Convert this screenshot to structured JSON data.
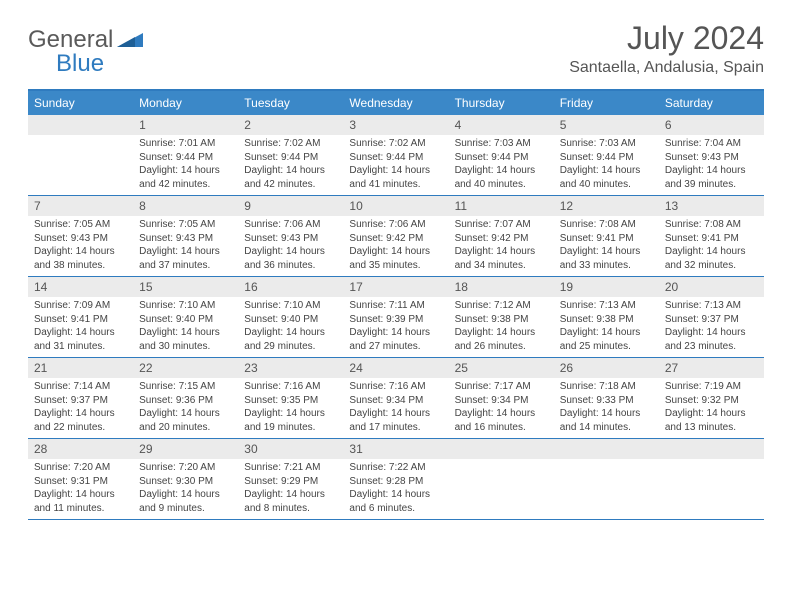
{
  "brand": {
    "general": "General",
    "blue": "Blue"
  },
  "title": "July 2024",
  "location": "Santaella, Andalusia, Spain",
  "colors": {
    "header_bg": "#3b88c8",
    "border": "#2f7bbf",
    "daynum_bg": "#ebebeb",
    "text": "#555555"
  },
  "weekdays": [
    "Sunday",
    "Monday",
    "Tuesday",
    "Wednesday",
    "Thursday",
    "Friday",
    "Saturday"
  ],
  "weeks": [
    [
      null,
      {
        "n": "1",
        "sr": "7:01 AM",
        "ss": "9:44 PM",
        "dl": "14 hours and 42 minutes."
      },
      {
        "n": "2",
        "sr": "7:02 AM",
        "ss": "9:44 PM",
        "dl": "14 hours and 42 minutes."
      },
      {
        "n": "3",
        "sr": "7:02 AM",
        "ss": "9:44 PM",
        "dl": "14 hours and 41 minutes."
      },
      {
        "n": "4",
        "sr": "7:03 AM",
        "ss": "9:44 PM",
        "dl": "14 hours and 40 minutes."
      },
      {
        "n": "5",
        "sr": "7:03 AM",
        "ss": "9:44 PM",
        "dl": "14 hours and 40 minutes."
      },
      {
        "n": "6",
        "sr": "7:04 AM",
        "ss": "9:43 PM",
        "dl": "14 hours and 39 minutes."
      }
    ],
    [
      {
        "n": "7",
        "sr": "7:05 AM",
        "ss": "9:43 PM",
        "dl": "14 hours and 38 minutes."
      },
      {
        "n": "8",
        "sr": "7:05 AM",
        "ss": "9:43 PM",
        "dl": "14 hours and 37 minutes."
      },
      {
        "n": "9",
        "sr": "7:06 AM",
        "ss": "9:43 PM",
        "dl": "14 hours and 36 minutes."
      },
      {
        "n": "10",
        "sr": "7:06 AM",
        "ss": "9:42 PM",
        "dl": "14 hours and 35 minutes."
      },
      {
        "n": "11",
        "sr": "7:07 AM",
        "ss": "9:42 PM",
        "dl": "14 hours and 34 minutes."
      },
      {
        "n": "12",
        "sr": "7:08 AM",
        "ss": "9:41 PM",
        "dl": "14 hours and 33 minutes."
      },
      {
        "n": "13",
        "sr": "7:08 AM",
        "ss": "9:41 PM",
        "dl": "14 hours and 32 minutes."
      }
    ],
    [
      {
        "n": "14",
        "sr": "7:09 AM",
        "ss": "9:41 PM",
        "dl": "14 hours and 31 minutes."
      },
      {
        "n": "15",
        "sr": "7:10 AM",
        "ss": "9:40 PM",
        "dl": "14 hours and 30 minutes."
      },
      {
        "n": "16",
        "sr": "7:10 AM",
        "ss": "9:40 PM",
        "dl": "14 hours and 29 minutes."
      },
      {
        "n": "17",
        "sr": "7:11 AM",
        "ss": "9:39 PM",
        "dl": "14 hours and 27 minutes."
      },
      {
        "n": "18",
        "sr": "7:12 AM",
        "ss": "9:38 PM",
        "dl": "14 hours and 26 minutes."
      },
      {
        "n": "19",
        "sr": "7:13 AM",
        "ss": "9:38 PM",
        "dl": "14 hours and 25 minutes."
      },
      {
        "n": "20",
        "sr": "7:13 AM",
        "ss": "9:37 PM",
        "dl": "14 hours and 23 minutes."
      }
    ],
    [
      {
        "n": "21",
        "sr": "7:14 AM",
        "ss": "9:37 PM",
        "dl": "14 hours and 22 minutes."
      },
      {
        "n": "22",
        "sr": "7:15 AM",
        "ss": "9:36 PM",
        "dl": "14 hours and 20 minutes."
      },
      {
        "n": "23",
        "sr": "7:16 AM",
        "ss": "9:35 PM",
        "dl": "14 hours and 19 minutes."
      },
      {
        "n": "24",
        "sr": "7:16 AM",
        "ss": "9:34 PM",
        "dl": "14 hours and 17 minutes."
      },
      {
        "n": "25",
        "sr": "7:17 AM",
        "ss": "9:34 PM",
        "dl": "14 hours and 16 minutes."
      },
      {
        "n": "26",
        "sr": "7:18 AM",
        "ss": "9:33 PM",
        "dl": "14 hours and 14 minutes."
      },
      {
        "n": "27",
        "sr": "7:19 AM",
        "ss": "9:32 PM",
        "dl": "14 hours and 13 minutes."
      }
    ],
    [
      {
        "n": "28",
        "sr": "7:20 AM",
        "ss": "9:31 PM",
        "dl": "14 hours and 11 minutes."
      },
      {
        "n": "29",
        "sr": "7:20 AM",
        "ss": "9:30 PM",
        "dl": "14 hours and 9 minutes."
      },
      {
        "n": "30",
        "sr": "7:21 AM",
        "ss": "9:29 PM",
        "dl": "14 hours and 8 minutes."
      },
      {
        "n": "31",
        "sr": "7:22 AM",
        "ss": "9:28 PM",
        "dl": "14 hours and 6 minutes."
      },
      null,
      null,
      null
    ]
  ],
  "labels": {
    "sunrise": "Sunrise:",
    "sunset": "Sunset:",
    "daylight": "Daylight:"
  }
}
